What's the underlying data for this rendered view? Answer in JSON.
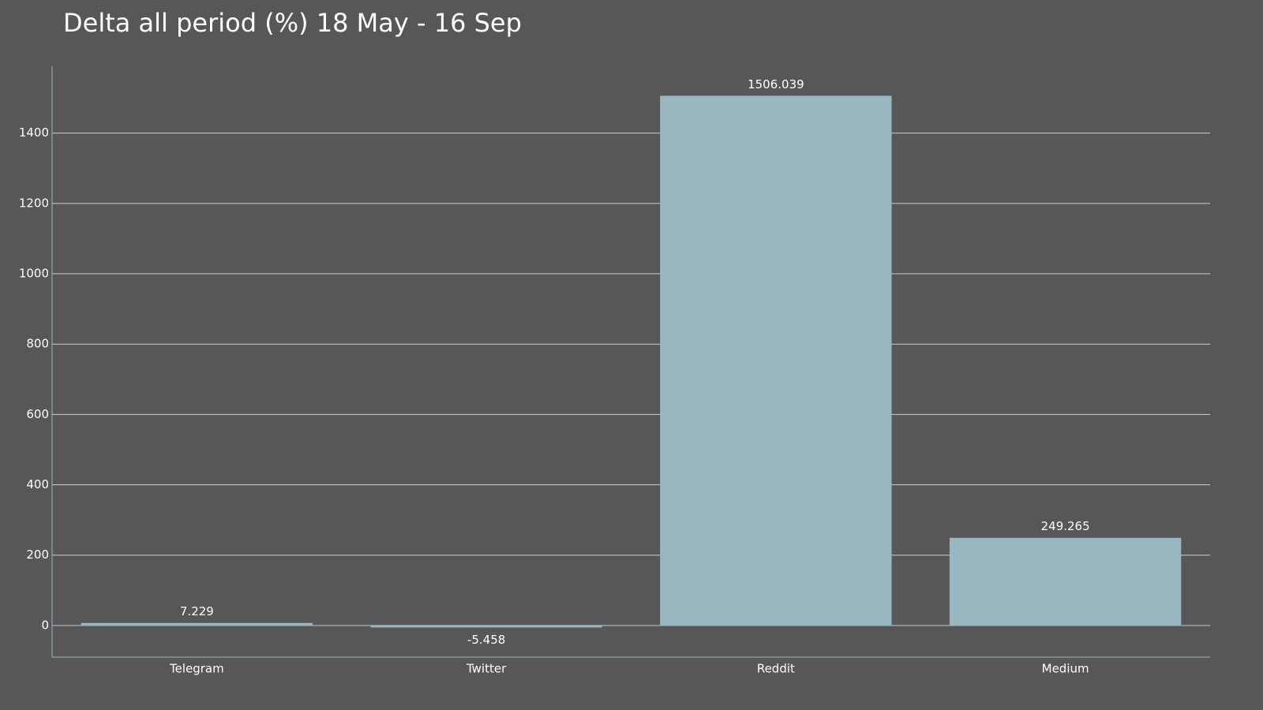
{
  "chart_data": {
    "type": "bar",
    "title": "Delta all period (%) 18 May - 16 Sep",
    "categories": [
      "Telegram",
      "Twitter",
      "Reddit",
      "Medium"
    ],
    "values": [
      7.229,
      -5.458,
      1506.039,
      249.265
    ],
    "color": "#98b7c1",
    "ylim": [
      -90,
      1590
    ],
    "yticks": [
      0,
      200,
      400,
      600,
      800,
      1000,
      1200,
      1400
    ],
    "grid": true
  }
}
